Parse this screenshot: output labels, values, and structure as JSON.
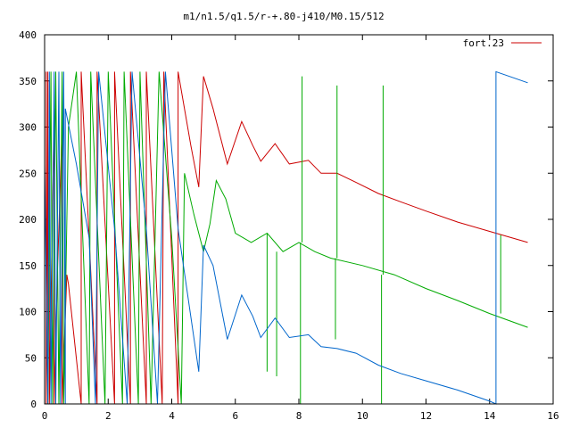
{
  "chart_data": {
    "type": "line",
    "title": "m1/n1.5/q1.5/r-+.80-j410/M0.15/512",
    "xlabel": "",
    "ylabel": "",
    "xlim": [
      0,
      16
    ],
    "ylim": [
      0,
      400
    ],
    "xticks": [
      0,
      2,
      4,
      6,
      8,
      10,
      12,
      14,
      16
    ],
    "yticks": [
      0,
      50,
      100,
      150,
      200,
      250,
      300,
      350,
      400
    ],
    "grid": false,
    "legend": {
      "placement": "top-right",
      "entries": [
        "fort.23"
      ]
    },
    "series": [
      {
        "name": "fort.23",
        "color": "#cc0000",
        "points": [
          [
            0.05,
            360
          ],
          [
            0.05,
            0
          ],
          [
            0.1,
            360
          ],
          [
            0.1,
            0
          ],
          [
            0.15,
            350
          ],
          [
            0.15,
            0
          ],
          [
            0.3,
            320
          ],
          [
            0.3,
            0
          ],
          [
            0.4,
            140
          ],
          [
            0.55,
            300
          ],
          [
            0.55,
            0
          ],
          [
            0.7,
            140
          ],
          [
            0.75,
            130
          ],
          [
            1.15,
            0
          ],
          [
            1.15,
            360
          ],
          [
            1.65,
            0
          ],
          [
            1.65,
            360
          ],
          [
            2.2,
            0
          ],
          [
            2.2,
            360
          ],
          [
            2.7,
            0
          ],
          [
            2.7,
            360
          ],
          [
            3.2,
            0
          ],
          [
            3.2,
            360
          ],
          [
            3.7,
            0
          ],
          [
            3.75,
            360
          ],
          [
            4.2,
            0
          ],
          [
            4.2,
            360
          ],
          [
            4.6,
            280
          ],
          [
            4.85,
            235
          ],
          [
            5.0,
            355
          ],
          [
            5.3,
            320
          ],
          [
            5.75,
            260
          ],
          [
            6.2,
            306
          ],
          [
            6.55,
            280
          ],
          [
            6.8,
            263
          ],
          [
            7.25,
            282
          ],
          [
            7.7,
            260
          ],
          [
            8.3,
            264
          ],
          [
            8.7,
            250
          ],
          [
            9.2,
            250
          ],
          [
            9.8,
            240
          ],
          [
            10.5,
            228
          ],
          [
            11.2,
            219
          ],
          [
            12.0,
            209
          ],
          [
            13.0,
            197
          ],
          [
            14.0,
            187
          ],
          [
            15.2,
            175
          ]
        ]
      },
      {
        "name": "",
        "color": "#00aa00",
        "points": [
          [
            0.1,
            0
          ],
          [
            0.2,
            360
          ],
          [
            0.25,
            0
          ],
          [
            0.35,
            360
          ],
          [
            0.45,
            0
          ],
          [
            0.55,
            360
          ],
          [
            0.6,
            0
          ],
          [
            0.75,
            300
          ],
          [
            1.0,
            360
          ],
          [
            1.4,
            0
          ],
          [
            1.45,
            360
          ],
          [
            1.9,
            0
          ],
          [
            2.0,
            360
          ],
          [
            2.45,
            0
          ],
          [
            2.5,
            360
          ],
          [
            2.95,
            0
          ],
          [
            3.0,
            360
          ],
          [
            3.35,
            0
          ],
          [
            3.6,
            360
          ],
          [
            4.0,
            180
          ],
          [
            4.3,
            0
          ],
          [
            4.4,
            250
          ],
          [
            4.7,
            205
          ],
          [
            5.0,
            165
          ],
          [
            5.2,
            195
          ],
          [
            5.4,
            242
          ],
          [
            5.7,
            222
          ],
          [
            6.0,
            185
          ],
          [
            6.5,
            175
          ],
          [
            7.0,
            185
          ],
          [
            7.5,
            165
          ],
          [
            8.0,
            175
          ],
          [
            8.5,
            165
          ],
          [
            9.0,
            158
          ],
          [
            10.0,
            150
          ],
          [
            11.0,
            140
          ],
          [
            12.0,
            125
          ],
          [
            13.0,
            112
          ],
          [
            14.0,
            98
          ],
          [
            15.2,
            83
          ]
        ],
        "spikes": [
          [
            7.0,
            35
          ],
          [
            7.3,
            30
          ],
          [
            8.05,
            0
          ],
          [
            8.1,
            355
          ],
          [
            9.15,
            70
          ],
          [
            9.2,
            345
          ],
          [
            10.6,
            0
          ],
          [
            10.65,
            345
          ],
          [
            14.35,
            183
          ]
        ]
      },
      {
        "name": "",
        "color": "#0066cc",
        "points": [
          [
            0.0,
            0
          ],
          [
            0.0,
            260
          ],
          [
            0.1,
            0
          ],
          [
            0.15,
            360
          ],
          [
            0.2,
            0
          ],
          [
            0.3,
            360
          ],
          [
            0.35,
            0
          ],
          [
            0.45,
            360
          ],
          [
            0.5,
            0
          ],
          [
            0.6,
            360
          ],
          [
            0.65,
            0
          ],
          [
            0.65,
            320
          ],
          [
            1.0,
            260
          ],
          [
            1.4,
            180
          ],
          [
            1.6,
            0
          ],
          [
            1.7,
            360
          ],
          [
            2.2,
            190
          ],
          [
            2.6,
            0
          ],
          [
            2.75,
            360
          ],
          [
            3.2,
            190
          ],
          [
            3.55,
            0
          ],
          [
            3.8,
            360
          ],
          [
            4.2,
            190
          ],
          [
            4.85,
            35
          ],
          [
            5.0,
            172
          ],
          [
            5.3,
            150
          ],
          [
            5.75,
            70
          ],
          [
            6.2,
            118
          ],
          [
            6.55,
            95
          ],
          [
            6.8,
            72
          ],
          [
            7.25,
            93
          ],
          [
            7.7,
            72
          ],
          [
            8.3,
            75
          ],
          [
            8.7,
            62
          ],
          [
            9.2,
            60
          ],
          [
            9.8,
            55
          ],
          [
            10.5,
            42
          ],
          [
            11.2,
            33
          ],
          [
            12.0,
            25
          ],
          [
            13.0,
            15
          ],
          [
            14.0,
            3
          ],
          [
            14.2,
            0
          ],
          [
            14.2,
            360
          ],
          [
            15.2,
            348
          ]
        ]
      }
    ]
  }
}
